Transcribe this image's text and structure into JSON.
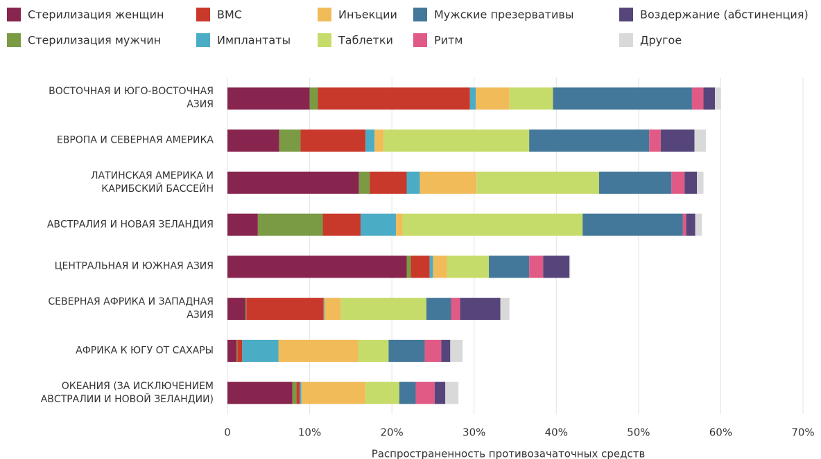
{
  "chart_data": {
    "type": "stacked-barh",
    "x_label": "Распространенность противозачаточных средств",
    "categories": [
      "ВОСТОЧНАЯ И ЮГО-ВОСТОЧНАЯ\nАЗИЯ",
      "ЕВРОПА И СЕВЕРНАЯ АМЕРИКА",
      "ЛАТИНСКАЯ АМЕРИКА И\nКАРИБСКИЙ БАССЕЙН",
      "АВСТРАЛИЯ И НОВАЯ ЗЕЛАНДИЯ",
      "ЦЕНТРАЛЬНАЯ И ЮЖНАЯ АЗИЯ",
      "СЕВЕРНАЯ АФРИКА И ЗАПАДНАЯ\nАЗИЯ",
      "АФРИКА К ЮГУ ОТ САХАРЫ",
      "ОКЕАНИЯ (ЗА ИСКЛЮЧЕНИЕМ\nАВСТРАЛИИ И НОВОЙ ЗЕЛАНДИИ)"
    ],
    "series": [
      {
        "name": "Стерилизация женщин",
        "color": "#88254f",
        "values": [
          10.0,
          6.3,
          16.0,
          3.7,
          21.8,
          2.2,
          1.1,
          7.9
        ]
      },
      {
        "name": "Стерилизация мужчин",
        "color": "#7a9a44",
        "values": [
          1.0,
          2.6,
          1.3,
          7.9,
          0.5,
          0.1,
          0.1,
          0.5
        ]
      },
      {
        "name": "ВМС",
        "color": "#c9392b",
        "values": [
          18.5,
          7.9,
          4.5,
          4.6,
          2.3,
          9.4,
          0.6,
          0.4
        ]
      },
      {
        "name": "Имплантаты",
        "color": "#4bacc6",
        "values": [
          0.7,
          1.1,
          1.6,
          4.3,
          0.4,
          0.1,
          4.4,
          0.2
        ]
      },
      {
        "name": "Инъекции",
        "color": "#f2bb5a",
        "values": [
          4.1,
          1.1,
          6.9,
          0.8,
          1.7,
          2.0,
          9.7,
          7.8
        ]
      },
      {
        "name": "Таблетки",
        "color": "#c6dc6a",
        "values": [
          5.3,
          17.7,
          14.9,
          21.9,
          5.1,
          10.4,
          3.7,
          4.1
        ]
      },
      {
        "name": "Мужские презервативы",
        "color": "#43789a",
        "values": [
          16.9,
          14.6,
          8.8,
          12.2,
          4.9,
          3.0,
          4.4,
          2.0
        ]
      },
      {
        "name": "Ритм",
        "color": "#e05a85",
        "values": [
          1.4,
          1.4,
          1.6,
          0.4,
          1.7,
          1.1,
          2.0,
          2.3
        ]
      },
      {
        "name": "Воздержание (абстиненция)",
        "color": "#56457a",
        "values": [
          1.4,
          4.1,
          1.5,
          1.1,
          3.2,
          4.9,
          1.1,
          1.3
        ]
      },
      {
        "name": "Другое",
        "color": "#d9d9d9",
        "values": [
          0.7,
          1.4,
          0.8,
          0.8,
          0.1,
          1.1,
          1.5,
          1.6
        ]
      }
    ],
    "xlim": [
      0,
      70
    ],
    "xticks": [
      0,
      {
        "value": 10,
        "label": "10%"
      },
      {
        "value": 20,
        "label": "20%"
      },
      {
        "value": 30,
        "label": "30%"
      },
      {
        "value": 40,
        "label": "40%"
      },
      {
        "value": 50,
        "label": "50%"
      },
      {
        "value": 60,
        "label": "60%"
      },
      {
        "value": 70,
        "label": "70%"
      }
    ],
    "grid": true,
    "legend": "top"
  }
}
